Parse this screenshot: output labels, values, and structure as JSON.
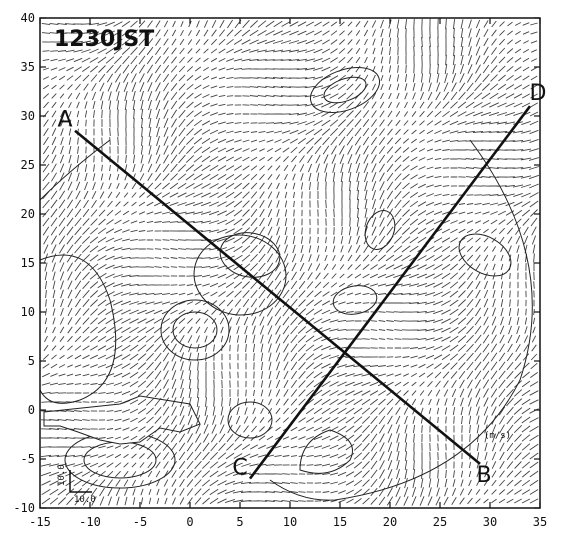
{
  "chart_data": {
    "type": "vector-field",
    "title": "1230JST",
    "xlim": [
      -15,
      35
    ],
    "ylim": [
      -10,
      40
    ],
    "x_ticks": [
      -15,
      -10,
      -5,
      0,
      5,
      10,
      15,
      20,
      25,
      30,
      35
    ],
    "y_ticks": [
      -10,
      -5,
      0,
      5,
      10,
      15,
      20,
      25,
      30,
      35,
      40
    ],
    "x_tick_labels": [
      "-15",
      "-10",
      "-5",
      "0",
      "5",
      "10",
      "15",
      "20",
      "25",
      "30",
      "35"
    ],
    "y_tick_labels": [
      "-10",
      "-5",
      "0",
      "5",
      "10",
      "15",
      "20",
      "25",
      "30",
      "35",
      "40"
    ],
    "grid": false,
    "cross_sections": [
      {
        "start_label": "A",
        "end_label": "B",
        "start": [
          -11.5,
          28.5
        ],
        "end": [
          29,
          -5.5
        ],
        "style": "solid"
      },
      {
        "start_label": "C",
        "end_label": "D",
        "start": [
          6,
          -7
        ],
        "end": [
          34,
          31
        ],
        "style": "solid"
      }
    ],
    "reference_vector": {
      "x_label": "10.0",
      "y_label": "10.0"
    },
    "unit_label": "(m/s)"
  }
}
